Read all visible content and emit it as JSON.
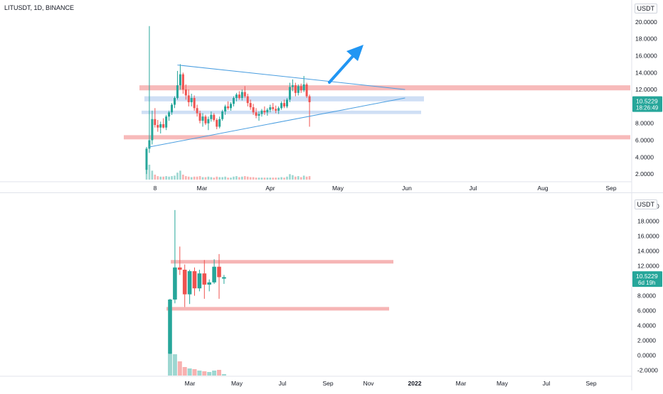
{
  "header": {
    "title": "LITUSDT, 1D, BINANCE",
    "currency": "USDT"
  },
  "colors": {
    "up": "#26a69a",
    "down": "#ef5350",
    "support_band": "#f4a3a3",
    "range_band": "#bfd4f2",
    "trendline": "#4a9ee0",
    "arrow": "#2196f3",
    "axis_text": "#131722",
    "price_tag": "#26a69a"
  },
  "chart_data": [
    {
      "type": "candlestick",
      "title": "LITUSDT, 1D, BINANCE",
      "timeframe": "1D",
      "x_ticks": [
        "8",
        "Mar",
        "Apr",
        "May",
        "Jun",
        "Jul",
        "Aug",
        "Sep"
      ],
      "y_ticks": [
        "20.0000",
        "18.0000",
        "16.0000",
        "14.0000",
        "12.0000",
        "10.0000",
        "8.0000",
        "6.0000",
        "4.0000",
        "2.0000"
      ],
      "ylim": [
        0.5,
        21.5
      ],
      "last_price": "10.5229",
      "countdown": "18:26:49",
      "candles": [
        [
          2.5,
          5.2,
          2.0,
          5.0
        ],
        [
          5.0,
          19.5,
          4.5,
          6.0
        ],
        [
          6.0,
          9.5,
          5.5,
          8.5
        ],
        [
          8.5,
          9.8,
          7.5,
          7.8
        ],
        [
          7.8,
          8.4,
          7.0,
          7.5
        ],
        [
          7.5,
          8.2,
          6.8,
          7.9
        ],
        [
          7.9,
          8.6,
          7.4,
          7.5
        ],
        [
          7.5,
          9.0,
          7.2,
          8.8
        ],
        [
          8.8,
          9.5,
          8.3,
          9.3
        ],
        [
          9.3,
          10.4,
          9.0,
          10.2
        ],
        [
          10.2,
          11.2,
          9.8,
          11.0
        ],
        [
          11.0,
          14.2,
          10.8,
          12.5
        ],
        [
          12.5,
          15.0,
          12.0,
          13.8
        ],
        [
          13.8,
          14.0,
          11.5,
          12.0
        ],
        [
          12.0,
          12.6,
          10.8,
          11.3
        ],
        [
          11.3,
          12.0,
          10.0,
          10.5
        ],
        [
          10.5,
          11.5,
          10.0,
          11.0
        ],
        [
          11.0,
          11.3,
          9.5,
          9.8
        ],
        [
          9.8,
          10.2,
          8.8,
          9.2
        ],
        [
          9.2,
          9.5,
          8.0,
          8.3
        ],
        [
          8.3,
          9.2,
          7.6,
          8.8
        ],
        [
          8.8,
          9.0,
          7.8,
          8.0
        ],
        [
          8.0,
          8.8,
          7.2,
          8.5
        ],
        [
          8.5,
          9.4,
          8.2,
          9.0
        ],
        [
          9.0,
          9.2,
          8.2,
          8.4
        ],
        [
          8.4,
          8.6,
          7.3,
          7.6
        ],
        [
          7.6,
          8.8,
          7.4,
          8.5
        ],
        [
          8.5,
          9.6,
          8.3,
          9.4
        ],
        [
          9.4,
          10.2,
          9.0,
          10.0
        ],
        [
          10.0,
          10.6,
          9.6,
          9.8
        ],
        [
          9.8,
          10.5,
          9.5,
          10.3
        ],
        [
          10.3,
          11.2,
          10.0,
          11.0
        ],
        [
          11.0,
          11.6,
          10.6,
          11.4
        ],
        [
          11.4,
          11.8,
          10.8,
          11.0
        ],
        [
          11.0,
          12.0,
          10.7,
          11.7
        ],
        [
          11.7,
          12.4,
          11.0,
          11.2
        ],
        [
          11.2,
          11.5,
          10.0,
          10.4
        ],
        [
          10.4,
          10.8,
          9.6,
          9.9
        ],
        [
          9.9,
          10.3,
          9.0,
          9.3
        ],
        [
          9.3,
          9.8,
          8.6,
          8.9
        ],
        [
          8.9,
          9.4,
          8.3,
          9.1
        ],
        [
          9.1,
          9.7,
          8.8,
          9.5
        ],
        [
          9.5,
          10.0,
          9.0,
          9.3
        ],
        [
          9.3,
          9.8,
          8.9,
          9.6
        ],
        [
          9.6,
          10.2,
          9.3,
          9.9
        ],
        [
          9.9,
          10.4,
          9.5,
          9.7
        ],
        [
          9.7,
          10.1,
          9.2,
          9.5
        ],
        [
          9.5,
          10.0,
          9.1,
          9.8
        ],
        [
          9.8,
          10.6,
          9.6,
          10.4
        ],
        [
          10.4,
          10.8,
          9.8,
          10.0
        ],
        [
          10.0,
          11.0,
          9.8,
          10.8
        ],
        [
          10.8,
          12.8,
          10.5,
          12.3
        ],
        [
          12.3,
          13.2,
          11.8,
          12.5
        ],
        [
          12.5,
          12.8,
          11.2,
          11.6
        ],
        [
          11.6,
          12.6,
          11.3,
          12.4
        ],
        [
          12.4,
          12.7,
          11.6,
          11.9
        ],
        [
          11.9,
          13.6,
          11.7,
          12.6
        ],
        [
          12.6,
          12.8,
          11.0,
          11.2
        ],
        [
          11.2,
          11.4,
          7.6,
          10.5
        ]
      ],
      "volume": [
        1.2,
        1.5,
        0.9,
        0.5,
        0.35,
        0.3,
        0.3,
        0.35,
        0.3,
        0.35,
        0.4,
        0.7,
        0.9,
        0.5,
        0.35,
        0.3,
        0.25,
        0.3,
        0.3,
        0.35,
        0.25,
        0.25,
        0.3,
        0.25,
        0.2,
        0.3,
        0.25,
        0.25,
        0.3,
        0.2,
        0.2,
        0.3,
        0.35,
        0.25,
        0.3,
        0.35,
        0.3,
        0.25,
        0.25,
        0.2,
        0.2,
        0.2,
        0.2,
        0.2,
        0.2,
        0.2,
        0.2,
        0.2,
        0.25,
        0.2,
        0.3,
        0.55,
        0.45,
        0.3,
        0.35,
        0.25,
        0.4,
        0.3,
        0.35
      ],
      "resistance_zone": [
        11.9,
        12.5
      ],
      "support_zone": [
        6.1,
        6.6
      ],
      "range_upper_zone": [
        10.6,
        11.2
      ],
      "range_lower_zone": [
        9.1,
        9.5
      ],
      "triangle_upper_line": [
        [
          11,
          14.9
        ],
        [
          92,
          12.0
        ]
      ],
      "triangle_lower_line": [
        [
          1,
          5.2
        ],
        [
          92,
          11.0
        ]
      ]
    },
    {
      "type": "candlestick",
      "timeframe": "1W",
      "x_ticks": [
        "Mar",
        "May",
        "Jul",
        "Sep",
        "Nov",
        "2022",
        "Mar",
        "May",
        "Jul",
        "Sep"
      ],
      "y_ticks": [
        "20.0000",
        "18.0000",
        "16.0000",
        "14.0000",
        "12.0000",
        "10.0000",
        "8.0000",
        "6.0000",
        "4.0000",
        "2.0000",
        "0.0000",
        "-2.0000"
      ],
      "ylim": [
        -2.5,
        21.2
      ],
      "last_price": "10.5229",
      "countdown": "6d 19h",
      "candles": [
        [
          0.2,
          7.6,
          0.2,
          7.5
        ],
        [
          7.5,
          19.5,
          7.0,
          11.8
        ],
        [
          11.8,
          14.6,
          10.8,
          11.5
        ],
        [
          11.5,
          12.2,
          6.5,
          8.2
        ],
        [
          8.2,
          11.5,
          6.9,
          11.3
        ],
        [
          11.3,
          11.8,
          8.0,
          9.0
        ],
        [
          9.0,
          11.5,
          8.6,
          11.0
        ],
        [
          11.0,
          12.8,
          7.6,
          9.5
        ],
        [
          9.5,
          10.2,
          8.6,
          9.8
        ],
        [
          9.8,
          12.9,
          9.6,
          11.9
        ],
        [
          11.9,
          13.6,
          7.6,
          10.5
        ],
        [
          10.3,
          10.8,
          9.6,
          10.5
        ]
      ],
      "volume": [
        1.5,
        1.5,
        1.0,
        0.6,
        0.5,
        0.45,
        0.35,
        0.3,
        0.25,
        0.35,
        0.4,
        0.1
      ],
      "resistance_zone": [
        12.4,
        12.8
      ],
      "support_zone": [
        6.1,
        6.5
      ]
    }
  ]
}
